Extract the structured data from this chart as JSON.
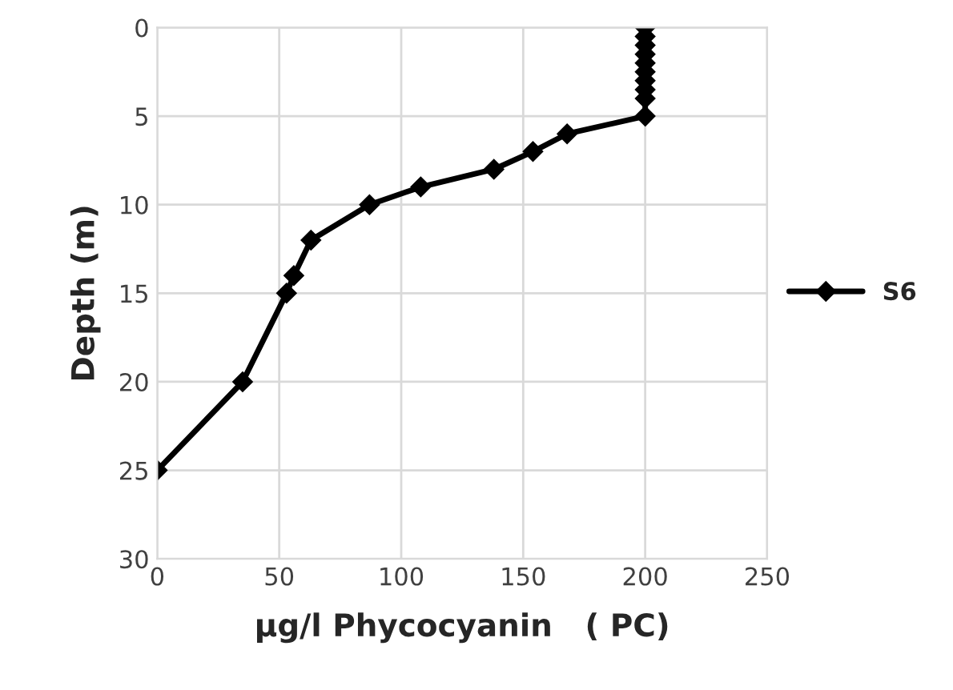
{
  "chart_data": {
    "type": "line",
    "xlabel": "µg/l Phycocyanin   ( PC)",
    "ylabel": "Depth (m)",
    "xlim": [
      0,
      250
    ],
    "xticks": [
      0,
      50,
      100,
      150,
      200,
      250
    ],
    "ylim": [
      30,
      0
    ],
    "yticks": [
      0,
      5,
      10,
      15,
      20,
      25,
      30
    ],
    "grid": true,
    "legend": "right",
    "marker": "diamond",
    "line_style": "solid",
    "series": [
      {
        "name": "S6",
        "color": "#000000",
        "x": [
          200,
          200,
          200,
          200,
          200,
          200,
          200,
          200,
          200,
          200,
          168,
          154,
          138,
          108,
          87,
          63,
          56,
          53,
          35,
          0
        ],
        "values": [
          0,
          0.5,
          1,
          1.5,
          2,
          2.5,
          3,
          3.5,
          4,
          5,
          6,
          7,
          8,
          9,
          10,
          12,
          14,
          15,
          20,
          25
        ]
      }
    ]
  }
}
